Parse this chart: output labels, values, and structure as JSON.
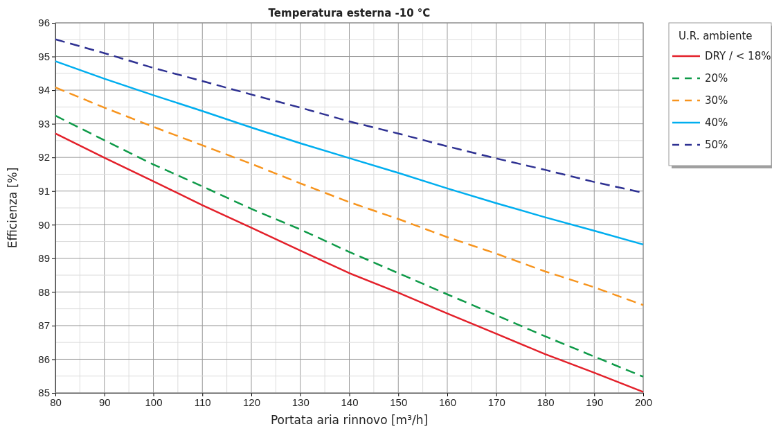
{
  "chart_data": {
    "type": "line",
    "title": "Temperatura esterna -10 °C",
    "xlabel": "Portata aria rinnovo [m³/h]",
    "ylabel": "Efficienza [%]",
    "legend_title": "U.R. ambiente",
    "legend": "top right",
    "grid": true,
    "marker": "none",
    "x": [
      80,
      90,
      100,
      110,
      120,
      130,
      140,
      150,
      160,
      170,
      180,
      190,
      200
    ],
    "xlim": [
      80,
      200
    ],
    "xticks": [
      80,
      90,
      100,
      110,
      120,
      130,
      140,
      150,
      160,
      170,
      180,
      190,
      200
    ],
    "ylim": [
      85,
      96
    ],
    "yticks": [
      85,
      86,
      87,
      88,
      89,
      90,
      91,
      92,
      93,
      94,
      95,
      96
    ],
    "series": [
      {
        "name": "DRY / < 18%",
        "color": "#e3202a",
        "line_style": "solid",
        "values": [
          92.71,
          91.99,
          91.29,
          90.58,
          89.91,
          89.23,
          88.56,
          87.98,
          87.36,
          86.76,
          86.15,
          85.6,
          85.03
        ]
      },
      {
        "name": "20%",
        "color": "#0e9a48",
        "line_style": "dashed",
        "values": [
          93.24,
          92.51,
          91.79,
          91.14,
          90.47,
          89.86,
          89.19,
          88.56,
          87.93,
          87.31,
          86.68,
          86.08,
          85.48
        ]
      },
      {
        "name": "30%",
        "color": "#f7941d",
        "line_style": "dashed",
        "values": [
          94.08,
          93.48,
          92.91,
          92.36,
          91.81,
          91.23,
          90.67,
          90.17,
          89.63,
          89.14,
          88.61,
          88.14,
          87.61
        ]
      },
      {
        "name": "40%",
        "color": "#00aeef",
        "line_style": "solid",
        "values": [
          94.86,
          94.34,
          93.85,
          93.38,
          92.89,
          92.42,
          91.98,
          91.54,
          91.08,
          90.64,
          90.22,
          89.82,
          89.41
        ]
      },
      {
        "name": "50%",
        "color": "#2e3192",
        "line_style": "dashed",
        "values": [
          95.51,
          95.1,
          94.66,
          94.27,
          93.87,
          93.48,
          93.07,
          92.71,
          92.33,
          91.97,
          91.63,
          91.27,
          90.95
        ]
      }
    ]
  }
}
